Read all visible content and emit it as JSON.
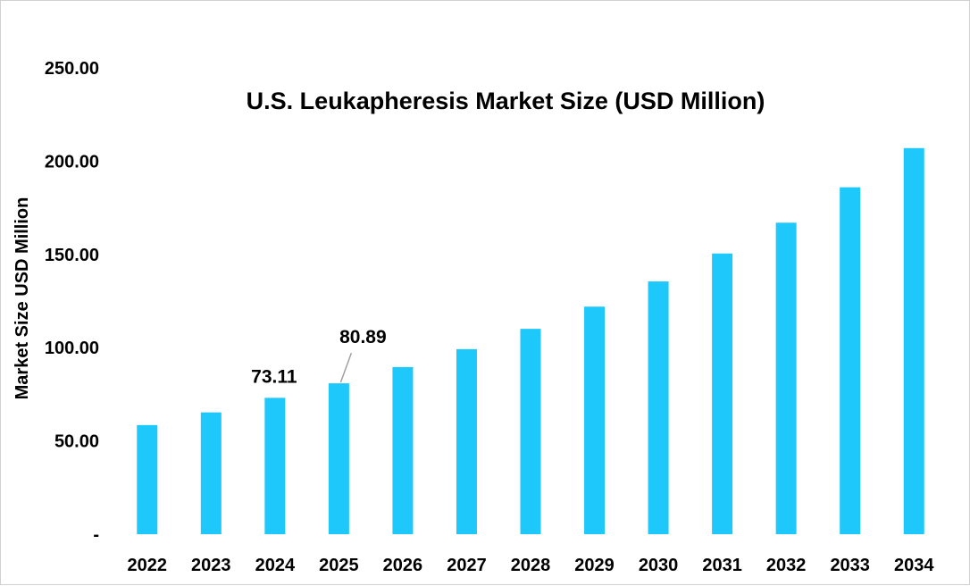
{
  "chart_data": {
    "type": "bar",
    "title": "U.S. Leukapheresis Market Size (USD Million)",
    "xlabel": "",
    "ylabel": "Market Size USD Million",
    "categories": [
      "2022",
      "2023",
      "2024",
      "2025",
      "2026",
      "2027",
      "2028",
      "2029",
      "2030",
      "2031",
      "2032",
      "2033",
      "2034"
    ],
    "values": [
      58.5,
      65.3,
      73.11,
      80.89,
      89.6,
      99.2,
      110.1,
      122.0,
      135.5,
      150.5,
      167.0,
      186.0,
      207.0
    ],
    "ylim": [
      0,
      250
    ],
    "y_ticks": [
      0,
      50,
      100,
      150,
      200,
      250
    ],
    "y_tick_labels": [
      "-",
      "50.00",
      "100.00",
      "150.00",
      "200.00",
      "250.00"
    ],
    "data_labels": [
      {
        "category": "2024",
        "text": "73.11"
      },
      {
        "category": "2025",
        "text": "80.89",
        "leader_line": true
      }
    ],
    "bar_color": "#1EC8FA",
    "grid": false,
    "legend": "none"
  }
}
